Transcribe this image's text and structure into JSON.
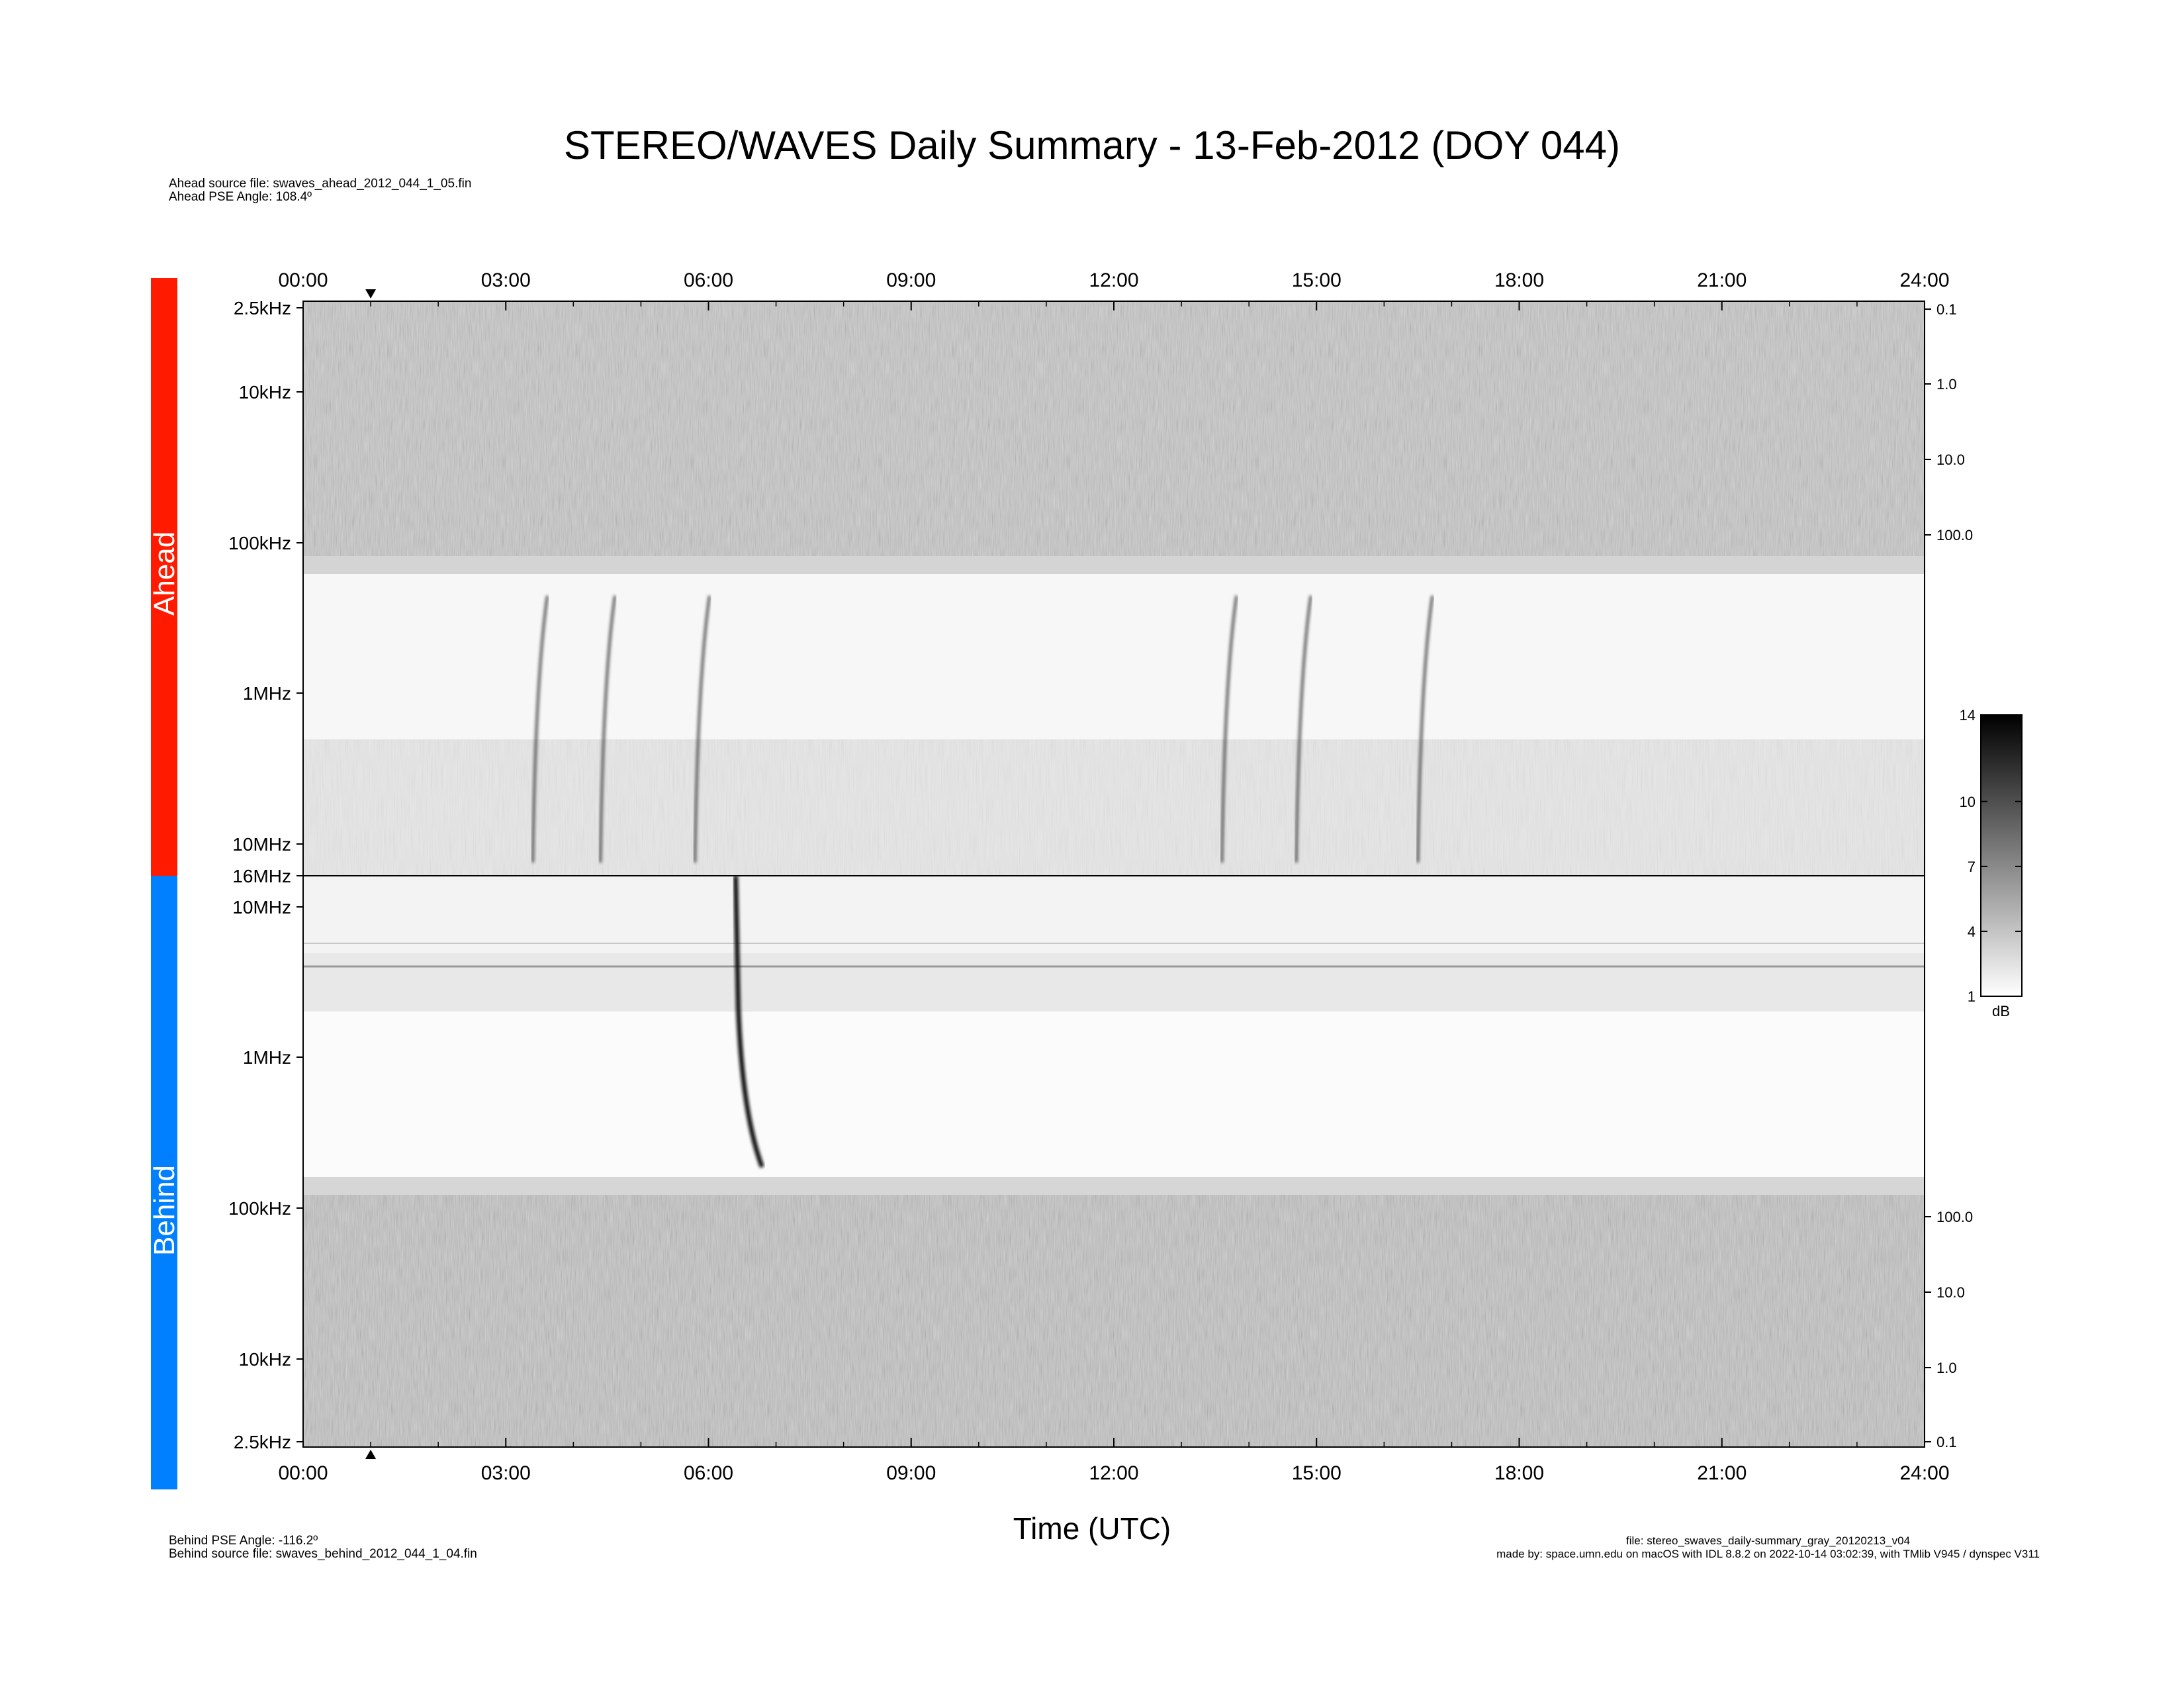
{
  "title": "STEREO/WAVES Daily Summary - 13-Feb-2012 (DOY 044)",
  "ahead_info": {
    "source_file": "Ahead source file: swaves_ahead_2012_044_1_05.fin",
    "pse_angle": "Ahead PSE Angle:  108.4º"
  },
  "behind_info": {
    "pse_angle": "Behind PSE Angle: -116.2º",
    "source_file": "Behind source file: swaves_behind_2012_044_1_04.fin"
  },
  "footer": {
    "file": "file: stereo_swaves_daily-summary_gray_20120213_v04",
    "made_by": "made by: space.umn.edu on macOS with IDL 8.8.2 on 2022-10-14 03:02:39, with TMlib V945 / dynspec V311"
  },
  "colors": {
    "ahead": "#ff1a00",
    "behind": "#0080ff"
  },
  "chart_data": {
    "type": "heatmap",
    "x_axis": {
      "label": "Time (UTC)",
      "range_hours": [
        0,
        24
      ],
      "ticks": [
        "00:00",
        "03:00",
        "06:00",
        "09:00",
        "12:00",
        "15:00",
        "18:00",
        "21:00",
        "24:00"
      ],
      "marker_hour": 1.0
    },
    "colorbar": {
      "label": "dB",
      "range": [
        1,
        14
      ],
      "ticks": [
        "14",
        "10",
        "7",
        "4",
        "1"
      ],
      "colormap": "gray"
    },
    "panels": [
      {
        "name": "Ahead",
        "y_ticks_left": [
          "2.5kHz",
          "10kHz",
          "100kHz",
          "1MHz",
          "10MHz",
          "16MHz"
        ],
        "y_ticks_right": [
          "0.1",
          "1.0",
          "10.0",
          "100.0"
        ],
        "bursts_hours": [
          3.4,
          4.4,
          5.8,
          13.6,
          14.7,
          16.5
        ]
      },
      {
        "name": "Behind",
        "y_ticks_left": [
          "10MHz",
          "1MHz",
          "100kHz",
          "10kHz",
          "2.5kHz"
        ],
        "y_ticks_right": [
          "100.0",
          "10.0",
          "1.0",
          "0.1"
        ],
        "bursts_hours": [
          6.5
        ]
      }
    ]
  }
}
